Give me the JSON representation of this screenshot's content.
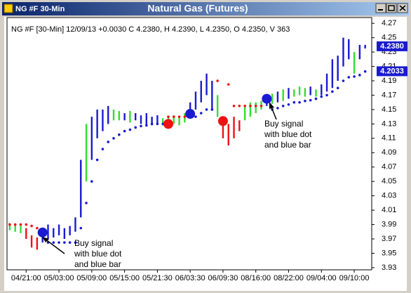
{
  "window_title": "NG #F 30-Min",
  "chart_data": {
    "type": "bar",
    "title": "Natural Gas (Futures)",
    "header": "NG #F [30-Min] 12/09/13 +0.0030 C 4.2380, H 4.2390, L 4.2350, O 4.2350, V 363",
    "xlim": [
      -0.5,
      66.2
    ],
    "ylim": [
      3.927,
      4.278
    ],
    "yticks": [
      {
        "value": 3.93,
        "label": "3.93"
      },
      {
        "value": 3.95,
        "label": "3.95"
      },
      {
        "value": 3.97,
        "label": "3.97"
      },
      {
        "value": 3.99,
        "label": "3.99"
      },
      {
        "value": 4.01,
        "label": "4.01"
      },
      {
        "value": 4.03,
        "label": "4.03"
      },
      {
        "value": 4.05,
        "label": "4.05"
      },
      {
        "value": 4.07,
        "label": "4.07"
      },
      {
        "value": 4.09,
        "label": "4.09"
      },
      {
        "value": 4.11,
        "label": "4.11"
      },
      {
        "value": 4.13,
        "label": "4.13"
      },
      {
        "value": 4.15,
        "label": "4.15"
      },
      {
        "value": 4.17,
        "label": "4.17"
      },
      {
        "value": 4.19,
        "label": "4.19"
      },
      {
        "value": 4.21,
        "label": "4.21"
      },
      {
        "value": 4.23,
        "label": "4.23"
      },
      {
        "value": 4.25,
        "label": "4.25"
      },
      {
        "value": 4.27,
        "label": "4.27"
      }
    ],
    "xticks": [
      {
        "value": 3,
        "label": "04/21:00"
      },
      {
        "value": 9,
        "label": "05/03:00"
      },
      {
        "value": 15,
        "label": "05/09:00"
      },
      {
        "value": 21,
        "label": "05/15:00"
      },
      {
        "value": 27,
        "label": "05/21:30"
      },
      {
        "value": 33,
        "label": "06/03:30"
      },
      {
        "value": 39,
        "label": "06/09:30"
      },
      {
        "value": 45,
        "label": "08/16:00"
      },
      {
        "value": 51,
        "label": "08/22:00"
      },
      {
        "value": 57,
        "label": "09/04:00"
      },
      {
        "value": 63,
        "label": "09/10:00"
      }
    ],
    "highs": [
      3.992,
      3.99,
      3.988,
      3.985,
      3.975,
      3.972,
      3.985,
      3.99,
      3.985,
      3.99,
      3.985,
      3.988,
      4.0,
      4.08,
      4.13,
      4.14,
      4.15,
      4.15,
      4.155,
      4.15,
      4.148,
      4.145,
      4.148,
      4.145,
      4.142,
      4.145,
      4.14,
      4.142,
      4.138,
      4.14,
      4.142,
      4.14,
      4.145,
      4.16,
      4.175,
      4.19,
      4.2,
      4.19,
      4.17,
      4.135,
      4.13,
      4.14,
      4.135,
      4.155,
      4.16,
      4.16,
      4.162,
      4.168,
      4.172,
      4.175,
      4.178,
      4.18,
      4.178,
      4.182,
      4.18,
      4.182,
      4.178,
      4.185,
      4.2,
      4.22,
      4.225,
      4.25,
      4.248,
      4.23,
      4.24,
      4.24
    ],
    "lows": [
      3.982,
      3.98,
      3.978,
      3.97,
      3.958,
      3.955,
      3.965,
      3.97,
      3.972,
      3.975,
      3.97,
      3.975,
      3.98,
      4.0,
      4.05,
      4.08,
      4.11,
      4.12,
      4.13,
      4.135,
      4.135,
      4.135,
      4.132,
      4.135,
      4.13,
      4.128,
      4.128,
      4.13,
      4.128,
      4.125,
      4.13,
      4.128,
      4.132,
      4.14,
      4.15,
      4.16,
      4.17,
      4.15,
      4.14,
      4.11,
      4.1,
      4.11,
      4.12,
      4.135,
      4.14,
      4.145,
      4.15,
      4.155,
      4.158,
      4.16,
      4.162,
      4.165,
      4.168,
      4.17,
      4.168,
      4.17,
      4.168,
      4.17,
      4.175,
      4.18,
      4.19,
      4.21,
      4.22,
      4.2,
      4.22,
      4.235
    ],
    "bar_colors": [
      "#33dd33",
      "#33dd33",
      "#33dd33",
      "#ee1111",
      "#ee1111",
      "#ee1111",
      "#1a1ad0",
      "#1a1ad0",
      "#1a1ad0",
      "#1a1ad0",
      "#1a1ad0",
      "#1a1ad0",
      "#1a1ad0",
      "#1a1ad0",
      "#33dd33",
      "#1a1ad0",
      "#1a1ad0",
      "#1a1ad0",
      "#1a1ad0",
      "#33dd33",
      "#33dd33",
      "#1a1ad0",
      "#33dd33",
      "#1a1ad0",
      "#1a1ad0",
      "#1a1ad0",
      "#1a1ad0",
      "#1a1ad0",
      "#33dd33",
      "#33dd33",
      "#33dd33",
      "#33dd33",
      "#33dd33",
      "#1a1ad0",
      "#1a1ad0",
      "#1a1ad0",
      "#1a1ad0",
      "#1a1ad0",
      "#33dd33",
      "#ee1111",
      "#ee1111",
      "#ee1111",
      "#ee1111",
      "#33dd33",
      "#33dd33",
      "#33dd33",
      "#33dd33",
      "#1a1ad0",
      "#33dd33",
      "#1a1ad0",
      "#33dd33",
      "#1a1ad0",
      "#33dd33",
      "#33dd33",
      "#33dd33",
      "#1a1ad0",
      "#33dd33",
      "#1a1ad0",
      "#1a1ad0",
      "#1a1ad0",
      "#1a1ad0",
      "#1a1ad0",
      "#1a1ad0",
      "#33dd33",
      "#1a1ad0",
      "#1a1ad0"
    ],
    "stops": [
      3.99,
      3.99,
      3.99,
      3.99,
      3.988,
      3.985,
      null,
      3.965,
      3.965,
      3.965,
      3.965,
      3.965,
      3.965,
      3.985,
      4.02,
      4.05,
      4.08,
      4.095,
      4.105,
      4.11,
      4.115,
      4.12,
      4.122,
      4.125,
      4.127,
      4.128,
      4.13,
      4.13,
      4.13,
      4.14,
      4.14,
      4.14,
      4.14,
      null,
      4.14,
      4.145,
      4.15,
      4.15,
      4.19,
      null,
      4.185,
      4.155,
      4.155,
      4.155,
      4.155,
      4.155,
      4.155,
      null,
      4.15,
      4.152,
      4.155,
      4.157,
      4.16,
      4.16,
      4.162,
      4.163,
      4.165,
      4.168,
      4.17,
      4.175,
      4.18,
      4.19,
      4.195,
      4.196,
      4.198,
      4.203
    ],
    "stop_colors": [
      "#ee1111",
      "#ee1111",
      "#ee1111",
      "#ee1111",
      "#ee1111",
      "#ee1111",
      "#1a1ad0",
      "#1a1ad0",
      "#1a1ad0",
      "#1a1ad0",
      "#1a1ad0",
      "#1a1ad0",
      "#1a1ad0",
      "#1a1ad0",
      "#1a1ad0",
      "#1a1ad0",
      "#1a1ad0",
      "#1a1ad0",
      "#1a1ad0",
      "#1a1ad0",
      "#1a1ad0",
      "#1a1ad0",
      "#1a1ad0",
      "#1a1ad0",
      "#1a1ad0",
      "#1a1ad0",
      "#1a1ad0",
      "#1a1ad0",
      "#1a1ad0",
      "#ee1111",
      "#ee1111",
      "#ee1111",
      "#ee1111",
      "#1a1ad0",
      "#1a1ad0",
      "#1a1ad0",
      "#1a1ad0",
      "#1a1ad0",
      "#ee1111",
      "#ee1111",
      "#ee1111",
      "#ee1111",
      "#ee1111",
      "#ee1111",
      "#ee1111",
      "#ee1111",
      "#ee1111",
      "#1a1ad0",
      "#1a1ad0",
      "#1a1ad0",
      "#1a1ad0",
      "#1a1ad0",
      "#1a1ad0",
      "#1a1ad0",
      "#1a1ad0",
      "#1a1ad0",
      "#1a1ad0",
      "#1a1ad0",
      "#1a1ad0",
      "#1a1ad0",
      "#1a1ad0",
      "#1a1ad0",
      "#1a1ad0",
      "#1a1ad0",
      "#1a1ad0",
      "#1a1ad0"
    ],
    "signals": [
      {
        "x": 6,
        "value": 3.979,
        "color": "#1a1ad0"
      },
      {
        "x": 29,
        "value": 4.13,
        "color": "#ee1111"
      },
      {
        "x": 33,
        "value": 4.144,
        "color": "#1a1ad0"
      },
      {
        "x": 39,
        "value": 4.134,
        "color": "#ee1111"
      },
      {
        "x": 47,
        "value": 4.165,
        "color": "#1a1ad0"
      }
    ],
    "price_labels": [
      {
        "value": 4.238,
        "label": "4.2380"
      },
      {
        "value": 4.2033,
        "label": "4.2033"
      }
    ],
    "annotations": [
      {
        "lines": [
          "Buy signal",
          "with blue dot",
          "and blue bar"
        ]
      },
      {
        "lines": [
          "Buy signal",
          "with blue dot",
          "and blue bar"
        ]
      }
    ]
  }
}
